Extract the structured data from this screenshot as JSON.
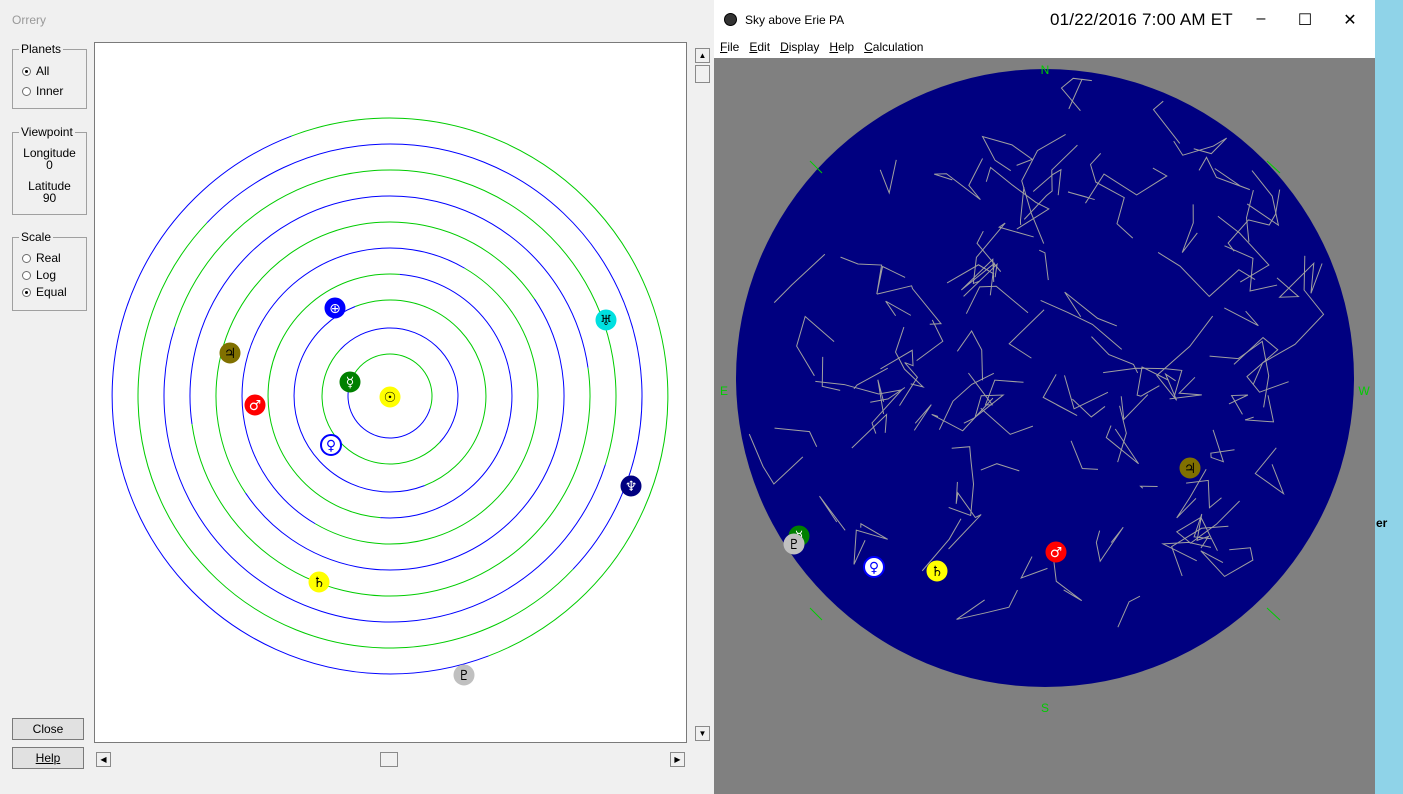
{
  "orrery": {
    "title": "Orrery",
    "planets_group": {
      "legend": "Planets",
      "options": [
        {
          "label": "All",
          "selected": true
        },
        {
          "label": "Inner",
          "selected": false
        }
      ]
    },
    "viewpoint_group": {
      "legend": "Viewpoint",
      "longitude_label": "Longitude",
      "longitude_value": "0",
      "latitude_label": "Latitude",
      "latitude_value": "90"
    },
    "scale_group": {
      "legend": "Scale",
      "options": [
        {
          "label": "Real",
          "selected": false
        },
        {
          "label": "Log",
          "selected": false
        },
        {
          "label": "Equal",
          "selected": true
        }
      ]
    },
    "close_label": "Close",
    "help_label": "Help",
    "planet_glyphs": {
      "sun": "☉",
      "mercury": "☿",
      "venus": "♀",
      "earth": "⊕",
      "mars": "♂",
      "jupiter": "♃",
      "saturn": "♄",
      "uranus": "♅",
      "neptune": "♆",
      "pluto": "♇"
    },
    "colors": {
      "orbit_blue": "#0000ff",
      "orbit_green": "#00cc00",
      "sun": "#ffff00",
      "mercury": "#008000",
      "venus": "#0000ff",
      "earth": "#0000ff",
      "mars": "#ff0000",
      "jupiter": "#807000",
      "saturn": "#ffff00",
      "uranus": "#00e0e0",
      "neptune": "#000080",
      "pluto": "#c0c0c0"
    }
  },
  "sky": {
    "title": "Sky above Erie PA",
    "datetime": "01/22/2016 7:00 AM ET",
    "window_controls": {
      "minimize": "–",
      "maximize": "☐",
      "close": "✕"
    },
    "menu": [
      {
        "label": "File",
        "key": "F",
        "rest": "ile"
      },
      {
        "label": "Edit",
        "key": "E",
        "rest": "dit"
      },
      {
        "label": "Display",
        "key": "D",
        "rest": "isplay"
      },
      {
        "label": "Help",
        "key": "H",
        "rest": "elp"
      },
      {
        "label": "Calculation",
        "key": "C",
        "rest": "alculation"
      }
    ],
    "compass": {
      "north": "N",
      "south": "S",
      "east": "E",
      "west": "W"
    },
    "colors": {
      "sky": "#000080",
      "frame": "#808080",
      "constellation": "#a0a0a0",
      "compass": "#00cc00"
    }
  },
  "background_window_text": "er"
}
